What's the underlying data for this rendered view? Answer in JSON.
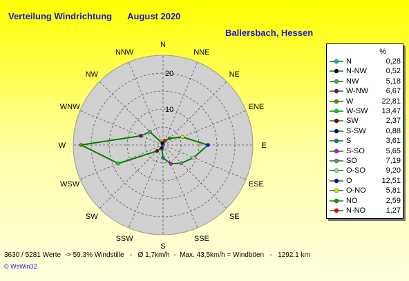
{
  "header": {
    "title": "Verteilung Windrichtung",
    "month": "August 2020",
    "location": "Ballersbach, Hessen"
  },
  "footer": {
    "stats": "3630 / 5281 Werte  -> 59.3% Windstille   -   Ø 1,7km/h  -  Max. 43,5km/h = Windböen   -   1292.1 km",
    "copyright": "© WsWin32"
  },
  "legend": {
    "unit": "%"
  },
  "chart_data": {
    "type": "radar",
    "ring_labels": [
      "10",
      "20"
    ],
    "rmax": 25,
    "ring_values": [
      10,
      20
    ],
    "direction_labels": [
      "N",
      "NNE",
      "NE",
      "ENE",
      "E",
      "ESE",
      "SE",
      "SSE",
      "S",
      "SSW",
      "SW",
      "WSW",
      "W",
      "WNW",
      "NW",
      "NNW"
    ],
    "line_color": "#008000",
    "series": [
      {
        "legend": "N",
        "compass": "N",
        "value": 0.28,
        "value_label": "0,28",
        "color": "#00b8b8"
      },
      {
        "legend": "N-NW",
        "compass": "NNW",
        "value": 0.52,
        "value_label": "0,52",
        "color": "#000000"
      },
      {
        "legend": "NW",
        "compass": "NW",
        "value": 5.18,
        "value_label": "5,18",
        "color": "#4aa84a"
      },
      {
        "legend": "W-NW",
        "compass": "WNW",
        "value": 6.67,
        "value_label": "6,67",
        "color": "#800080"
      },
      {
        "legend": "W",
        "compass": "W",
        "value": 22.81,
        "value_label": "22,81",
        "color": "#808000"
      },
      {
        "legend": "W-SW",
        "compass": "WSW",
        "value": 13.47,
        "value_label": "13,47",
        "color": "#00e000"
      },
      {
        "legend": "SW",
        "compass": "SW",
        "value": 2.37,
        "value_label": "2,37",
        "color": "#800000"
      },
      {
        "legend": "S-SW",
        "compass": "SSW",
        "value": 0.88,
        "value_label": "0,88",
        "color": "#000080"
      },
      {
        "legend": "S",
        "compass": "S",
        "value": 3.61,
        "value_label": "3,61",
        "color": "#008080"
      },
      {
        "legend": "S-SO",
        "compass": "SSE",
        "value": 5.65,
        "value_label": "5,65",
        "color": "#e000e0"
      },
      {
        "legend": "SO",
        "compass": "SE",
        "value": 7.19,
        "value_label": "7,19",
        "color": "#808080"
      },
      {
        "legend": "O-SO",
        "compass": "ESE",
        "value": 9.2,
        "value_label": "9,20",
        "color": "#c0c0c0"
      },
      {
        "legend": "O",
        "compass": "E",
        "value": 12.51,
        "value_label": "12,51",
        "color": "#0000ff"
      },
      {
        "legend": "O-NO",
        "compass": "ENE",
        "value": 5.81,
        "value_label": "5,81",
        "color": "#e0e000"
      },
      {
        "legend": "NO",
        "compass": "NE",
        "value": 2.59,
        "value_label": "2,59",
        "color": "#00a000"
      },
      {
        "legend": "N-NO",
        "compass": "NNE",
        "value": 1.27,
        "value_label": "1,27",
        "color": "#ff0000"
      }
    ]
  }
}
